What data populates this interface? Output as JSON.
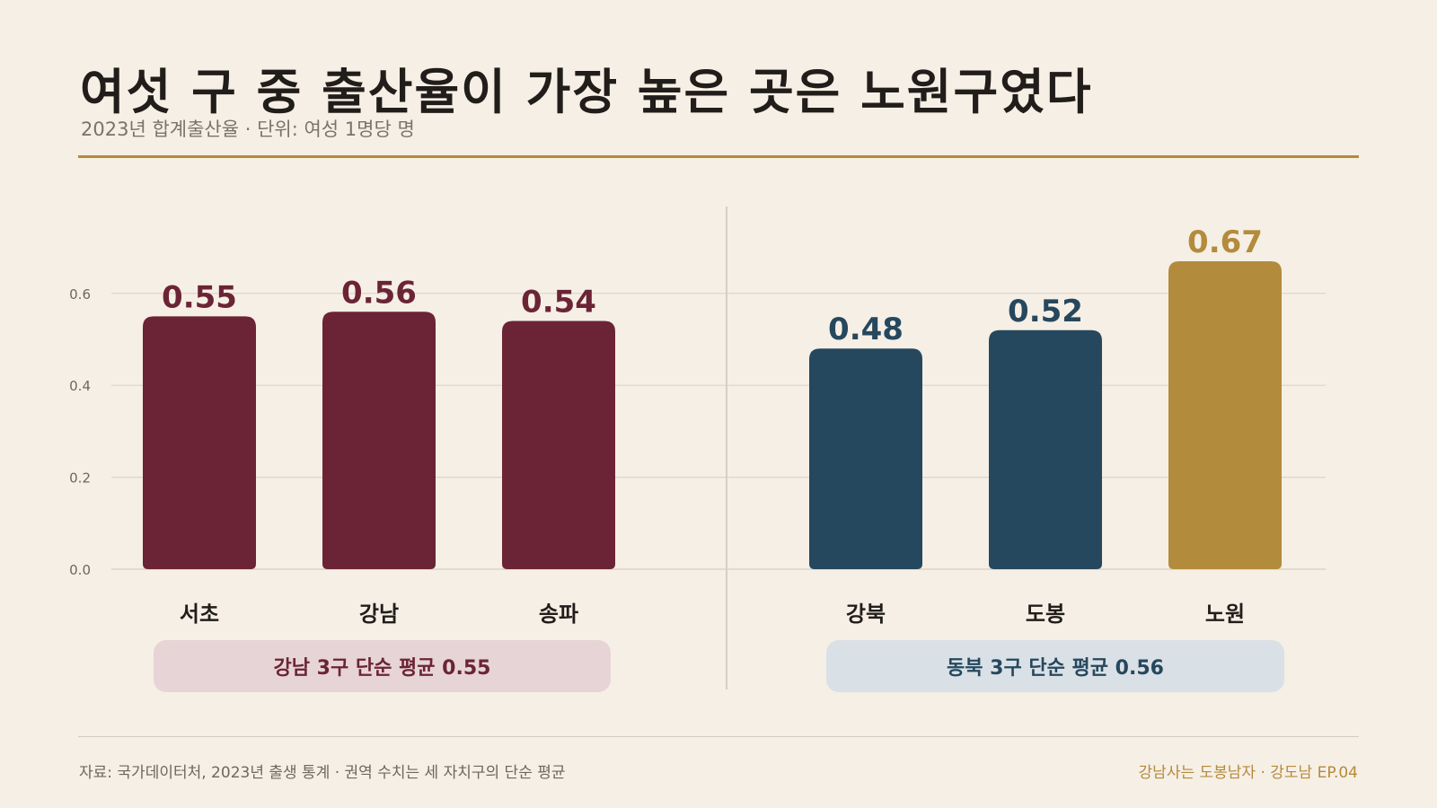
{
  "header": {
    "title": "여섯 구 중 출산율이 가장 높은 곳은 노원구였다",
    "subtitle": "2023년 합계출산율 · 단위: 여성 1명당 명"
  },
  "chart_data": {
    "type": "bar",
    "categories": [
      "서초",
      "강남",
      "송파",
      "강북",
      "도봉",
      "노원"
    ],
    "values": [
      0.55,
      0.56,
      0.54,
      0.48,
      0.52,
      0.67
    ],
    "value_labels": [
      "0.55",
      "0.56",
      "0.54",
      "0.48",
      "0.52",
      "0.67"
    ],
    "groups": [
      {
        "members": [
          "서초",
          "강남",
          "송파"
        ],
        "color": "#6b2436",
        "average_label": "강남 3구 단순 평균 0.55"
      },
      {
        "members": [
          "강북",
          "도봉",
          "노원"
        ],
        "color": "#26485e",
        "average_label": "동북 3구 단순 평균 0.56"
      }
    ],
    "highlight": {
      "category": "노원",
      "color": "#b38b3c"
    },
    "yticks": [
      "0.0",
      "0.2",
      "0.4",
      "0.6"
    ],
    "ylim": [
      0,
      0.7
    ],
    "grid": true
  },
  "colors": {
    "background": "#f6efe5",
    "accent": "#b38b3c",
    "gangnam": "#6b2436",
    "dongbuk": "#26485e",
    "gangnam_pill_bg": "#e7d4d6",
    "dongbuk_pill_bg": "#d9e1e6"
  },
  "footer": {
    "source": "자료: 국가데이터처, 2023년 출생 통계 · 권역 수치는 세 자치구의 단순 평균",
    "series_info": "강남사는 도봉남자 · 강도남 EP.04"
  }
}
